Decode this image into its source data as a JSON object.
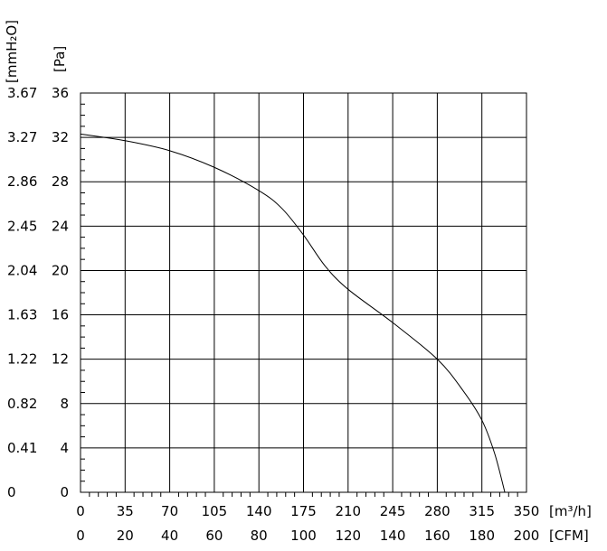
{
  "chart_data": {
    "type": "line",
    "title": "",
    "axes": {
      "y_left_outer_unit": "[mmH₂O]",
      "y_left_inner_unit": "[Pa]",
      "x_primary_unit": "[m³/h]",
      "x_secondary_unit": "[CFM]"
    },
    "xlim": [
      0,
      350
    ],
    "ylim": [
      0,
      36
    ],
    "grid": true,
    "x_primary_ticks": [
      "0",
      "35",
      "70",
      "105",
      "140",
      "175",
      "210",
      "245",
      "280",
      "315",
      "350"
    ],
    "x_secondary_ticks": [
      "0",
      "20",
      "40",
      "60",
      "80",
      "100",
      "120",
      "140",
      "160",
      "180",
      "200"
    ],
    "y_pa_ticks": [
      "0",
      "4",
      "8",
      "12",
      "16",
      "20",
      "24",
      "28",
      "32",
      "36"
    ],
    "y_mmh2o_ticks": [
      "0",
      "0.41",
      "0.82",
      "1.22",
      "1.63",
      "2.04",
      "2.45",
      "2.86",
      "3.27",
      "3.67"
    ],
    "series": [
      {
        "x": [
          0,
          35,
          70,
          105,
          140,
          158,
          175,
          192,
          210,
          245,
          280,
          300,
          315,
          325,
          333
        ],
        "y": [
          32.3,
          31.7,
          30.8,
          29.3,
          27.2,
          25.6,
          23.2,
          20.4,
          18.3,
          15.3,
          12.0,
          9.2,
          6.5,
          3.5,
          0.0
        ]
      }
    ]
  }
}
